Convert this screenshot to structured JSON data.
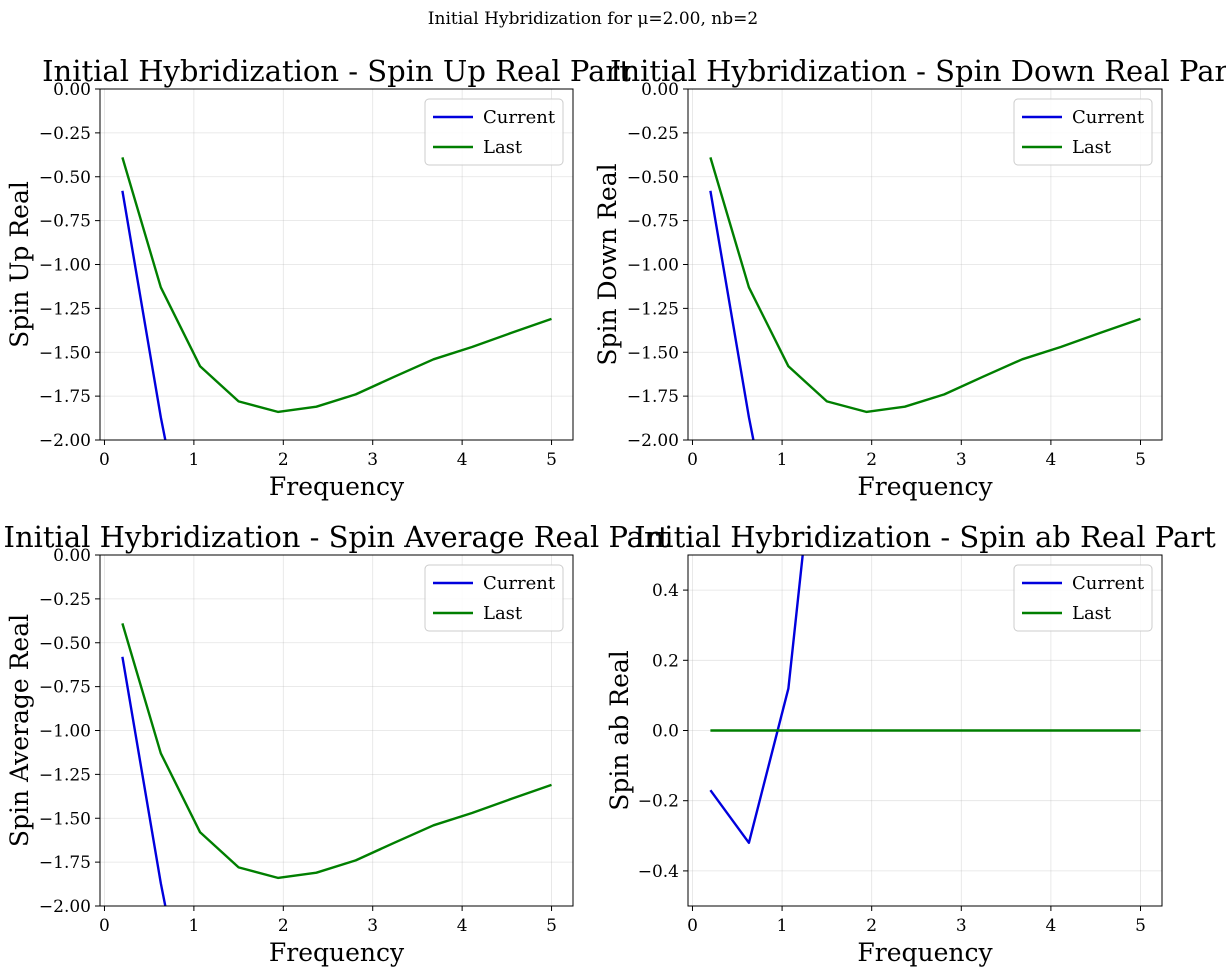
{
  "suptitle": "Initial Hybridization for μ=2.00, nb=2",
  "colors": {
    "current": "#0000dd",
    "last": "#007f00"
  },
  "chart_data": [
    {
      "type": "line",
      "title": "Initial Hybridization - Spin Up Real Part",
      "xlabel": "Frequency",
      "ylabel": "Spin Up Real",
      "xlim": [
        -0.05,
        5.24
      ],
      "ylim": [
        -2.0,
        0.0
      ],
      "xticks": [
        0,
        1,
        2,
        3,
        4,
        5
      ],
      "yticks": [
        0.0,
        -0.25,
        -0.5,
        -0.75,
        -1.0,
        -1.25,
        -1.5,
        -1.75,
        -2.0
      ],
      "xtick_labels": [
        "0",
        "1",
        "2",
        "3",
        "4",
        "5"
      ],
      "ytick_labels": [
        "0.00",
        "−0.25",
        "−0.50",
        "−0.75",
        "−1.00",
        "−1.25",
        "−1.50",
        "−1.75",
        "−2.00"
      ],
      "grid": true,
      "legend": "top-right",
      "series": [
        {
          "name": "Current",
          "color": "#0000dd",
          "x": [
            0.2,
            0.63,
            0.68
          ],
          "y": [
            -0.58,
            -1.87,
            -2.0
          ]
        },
        {
          "name": "Last",
          "color": "#007f00",
          "x": [
            0.2,
            0.63,
            1.07,
            1.5,
            1.94,
            2.37,
            2.81,
            3.24,
            3.68,
            4.11,
            4.55,
            5.0
          ],
          "y": [
            -0.39,
            -1.13,
            -1.58,
            -1.78,
            -1.84,
            -1.81,
            -1.74,
            -1.64,
            -1.54,
            -1.47,
            -1.39,
            -1.31
          ]
        }
      ]
    },
    {
      "type": "line",
      "title": "Initial Hybridization - Spin Down Real Part",
      "xlabel": "Frequency",
      "ylabel": "Spin Down Real",
      "xlim": [
        -0.05,
        5.24
      ],
      "ylim": [
        -2.0,
        0.0
      ],
      "xticks": [
        0,
        1,
        2,
        3,
        4,
        5
      ],
      "yticks": [
        0.0,
        -0.25,
        -0.5,
        -0.75,
        -1.0,
        -1.25,
        -1.5,
        -1.75,
        -2.0
      ],
      "xtick_labels": [
        "0",
        "1",
        "2",
        "3",
        "4",
        "5"
      ],
      "ytick_labels": [
        "0.00",
        "−0.25",
        "−0.50",
        "−0.75",
        "−1.00",
        "−1.25",
        "−1.50",
        "−1.75",
        "−2.00"
      ],
      "grid": true,
      "legend": "top-right",
      "series": [
        {
          "name": "Current",
          "color": "#0000dd",
          "x": [
            0.2,
            0.63,
            0.68
          ],
          "y": [
            -0.58,
            -1.87,
            -2.0
          ]
        },
        {
          "name": "Last",
          "color": "#007f00",
          "x": [
            0.2,
            0.63,
            1.07,
            1.5,
            1.94,
            2.37,
            2.81,
            3.24,
            3.68,
            4.11,
            4.55,
            5.0
          ],
          "y": [
            -0.39,
            -1.13,
            -1.58,
            -1.78,
            -1.84,
            -1.81,
            -1.74,
            -1.64,
            -1.54,
            -1.47,
            -1.39,
            -1.31
          ]
        }
      ]
    },
    {
      "type": "line",
      "title": "Initial Hybridization - Spin Average Real Part",
      "xlabel": "Frequency",
      "ylabel": "Spin Average Real",
      "xlim": [
        -0.05,
        5.24
      ],
      "ylim": [
        -2.0,
        0.0
      ],
      "xticks": [
        0,
        1,
        2,
        3,
        4,
        5
      ],
      "yticks": [
        0.0,
        -0.25,
        -0.5,
        -0.75,
        -1.0,
        -1.25,
        -1.5,
        -1.75,
        -2.0
      ],
      "xtick_labels": [
        "0",
        "1",
        "2",
        "3",
        "4",
        "5"
      ],
      "ytick_labels": [
        "0.00",
        "−0.25",
        "−0.50",
        "−0.75",
        "−1.00",
        "−1.25",
        "−1.50",
        "−1.75",
        "−2.00"
      ],
      "grid": true,
      "legend": "top-right",
      "series": [
        {
          "name": "Current",
          "color": "#0000dd",
          "x": [
            0.2,
            0.63,
            0.68
          ],
          "y": [
            -0.58,
            -1.87,
            -2.0
          ]
        },
        {
          "name": "Last",
          "color": "#007f00",
          "x": [
            0.2,
            0.63,
            1.07,
            1.5,
            1.94,
            2.37,
            2.81,
            3.24,
            3.68,
            4.11,
            4.55,
            5.0
          ],
          "y": [
            -0.39,
            -1.13,
            -1.58,
            -1.78,
            -1.84,
            -1.81,
            -1.74,
            -1.64,
            -1.54,
            -1.47,
            -1.39,
            -1.31
          ]
        }
      ]
    },
    {
      "type": "line",
      "title": "Initial Hybridization - Spin ab Real Part",
      "xlabel": "Frequency",
      "ylabel": "Spin ab Real",
      "xlim": [
        -0.05,
        5.24
      ],
      "ylim": [
        -0.5,
        0.5
      ],
      "xticks": [
        0,
        1,
        2,
        3,
        4,
        5
      ],
      "yticks": [
        0.4,
        0.2,
        0.0,
        -0.2,
        -0.4
      ],
      "xtick_labels": [
        "0",
        "1",
        "2",
        "3",
        "4",
        "5"
      ],
      "ytick_labels": [
        "0.4",
        "0.2",
        "0.0",
        "−0.2",
        "−0.4"
      ],
      "grid": true,
      "legend": "top-right",
      "series": [
        {
          "name": "Current",
          "color": "#0000dd",
          "x": [
            0.2,
            0.63,
            1.07,
            1.23
          ],
          "y": [
            -0.17,
            -0.32,
            0.12,
            0.5
          ]
        },
        {
          "name": "Last",
          "color": "#007f00",
          "x": [
            0.2,
            5.0
          ],
          "y": [
            0.0,
            0.0
          ]
        }
      ]
    }
  ]
}
